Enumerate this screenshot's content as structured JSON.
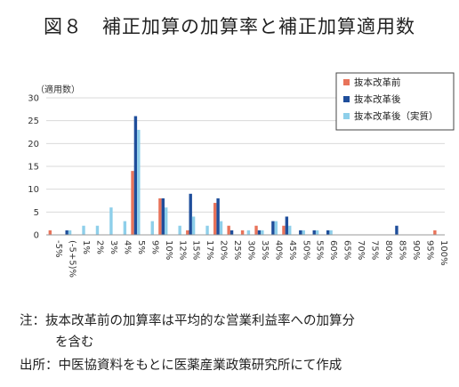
{
  "title": "図８　補正加算の加算率と補正加算適用数",
  "notes": {
    "line1": "注：抜本改革前の加算率は平均的な営業利益率への加算分",
    "line1b": "を含む",
    "line2": "出所：中医協資料をもとに医薬産業政策研究所にて作成"
  },
  "colors": {
    "before": "#E8735A",
    "after": "#1F4E9B",
    "after_actual": "#8ECFEA",
    "grid": "#D9D9D9",
    "axis": "#999999"
  },
  "chart_data": {
    "type": "bar",
    "ylabel": "（適用数）",
    "ylim": [
      0,
      30
    ],
    "yticks": [
      0,
      5,
      10,
      15,
      20,
      25,
      30
    ],
    "grid": true,
    "legend_position": "top-right",
    "categories": [
      "-5%",
      "(-5+5)%",
      "1%",
      "2%",
      "3%",
      "4%",
      "5%",
      "9%",
      "10%",
      "12%",
      "15%",
      "17%",
      "20%",
      "25%",
      "30%",
      "35%",
      "40%",
      "45%",
      "50%",
      "55%",
      "60%",
      "65%",
      "70%",
      "75%",
      "80%",
      "85%",
      "90%",
      "95%",
      "100%"
    ],
    "series": [
      {
        "name": "抜本改革前",
        "color": "#E8735A",
        "values": [
          1,
          0,
          0,
          0,
          0,
          0,
          14,
          0,
          8,
          0,
          1,
          0,
          7,
          2,
          1,
          2,
          0,
          2,
          0,
          0,
          0,
          0,
          0,
          0,
          0,
          0,
          0,
          0,
          1
        ]
      },
      {
        "name": "抜本改革後",
        "color": "#1F4E9B",
        "values": [
          0,
          1,
          0,
          0,
          0,
          0,
          26,
          0,
          8,
          0,
          9,
          0,
          8,
          1,
          0,
          1,
          3,
          4,
          1,
          1,
          1,
          0,
          0,
          0,
          0,
          2,
          0,
          0,
          0
        ]
      },
      {
        "name": "抜本改革後（実質）",
        "color": "#8ECFEA",
        "values": [
          0,
          1,
          2,
          2,
          6,
          3,
          23,
          3,
          6,
          2,
          4,
          2,
          3,
          0,
          1,
          1,
          3,
          2,
          1,
          1,
          1,
          0,
          0,
          0,
          0,
          0,
          0,
          0,
          0
        ]
      }
    ]
  }
}
